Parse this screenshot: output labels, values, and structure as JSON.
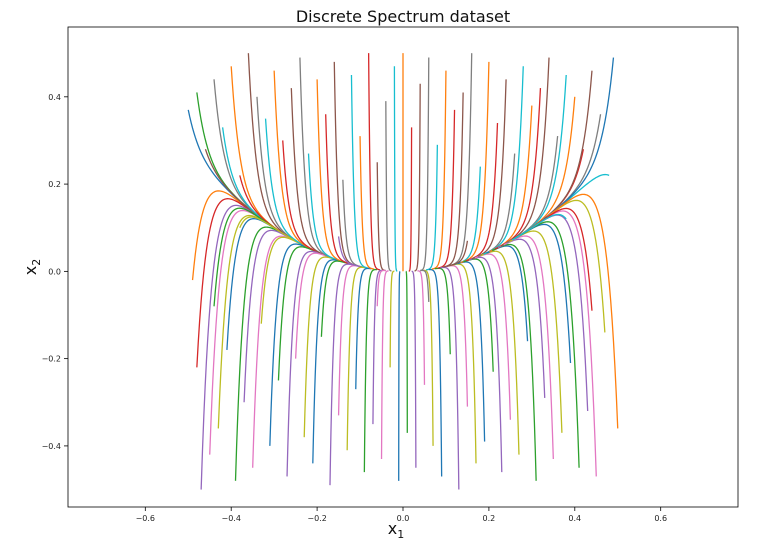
{
  "chart_data": {
    "type": "line",
    "title": "Discrete Spectrum dataset",
    "xlabel": {
      "base": "x",
      "sub": "1"
    },
    "ylabel": {
      "base": "x",
      "sub": "2"
    },
    "xlim": [
      -0.78,
      0.78
    ],
    "ylim": [
      -0.54,
      0.56
    ],
    "xticks": [
      -0.6,
      -0.4,
      -0.2,
      0.0,
      0.2,
      0.4,
      0.6
    ],
    "xtick_labels": [
      "−0.6",
      "−0.4",
      "−0.2",
      "0.0",
      "0.2",
      "0.4",
      "0.6"
    ],
    "yticks": [
      -0.4,
      -0.2,
      0.0,
      0.2,
      0.4
    ],
    "ytick_labels": [
      "−0.4",
      "−0.2",
      "0.0",
      "0.2",
      "0.4"
    ],
    "grid": false,
    "legend": "none",
    "trajectory_model": {
      "mu": -0.05,
      "lambda": -1.0,
      "t_end": 8,
      "steps": 60
    },
    "colors": [
      "#1f77b4",
      "#ff7f0e",
      "#2ca02c",
      "#d62728",
      "#9467bd",
      "#8c564b",
      "#e377c2",
      "#7f7f7f",
      "#bcbd22",
      "#17becf"
    ],
    "initial_conditions": [
      [
        -0.5,
        0.37
      ],
      [
        -0.49,
        -0.02
      ],
      [
        -0.48,
        0.41
      ],
      [
        -0.48,
        -0.22
      ],
      [
        -0.47,
        -0.5
      ],
      [
        -0.46,
        0.28
      ],
      [
        -0.45,
        -0.42
      ],
      [
        -0.44,
        0.44
      ],
      [
        -0.43,
        -0.36
      ],
      [
        -0.42,
        0.33
      ],
      [
        -0.41,
        -0.18
      ],
      [
        -0.4,
        0.47
      ],
      [
        -0.39,
        -0.48
      ],
      [
        -0.38,
        0.22
      ],
      [
        -0.37,
        -0.3
      ],
      [
        -0.36,
        0.5
      ],
      [
        -0.35,
        -0.45
      ],
      [
        -0.34,
        0.4
      ],
      [
        -0.33,
        -0.12
      ],
      [
        -0.32,
        0.35
      ],
      [
        -0.31,
        -0.4
      ],
      [
        -0.3,
        0.46
      ],
      [
        -0.29,
        -0.25
      ],
      [
        -0.28,
        0.3
      ],
      [
        -0.27,
        -0.47
      ],
      [
        -0.26,
        0.42
      ],
      [
        -0.25,
        -0.2
      ],
      [
        -0.24,
        0.49
      ],
      [
        -0.23,
        -0.38
      ],
      [
        -0.22,
        0.27
      ],
      [
        -0.21,
        -0.44
      ],
      [
        -0.2,
        0.44
      ],
      [
        -0.19,
        -0.15
      ],
      [
        -0.18,
        0.36
      ],
      [
        -0.17,
        -0.49
      ],
      [
        -0.16,
        0.48
      ],
      [
        -0.15,
        -0.33
      ],
      [
        -0.14,
        0.21
      ],
      [
        -0.13,
        -0.41
      ],
      [
        -0.12,
        0.45
      ],
      [
        -0.11,
        -0.27
      ],
      [
        -0.1,
        0.31
      ],
      [
        -0.09,
        -0.46
      ],
      [
        -0.08,
        0.5
      ],
      [
        -0.07,
        -0.35
      ],
      [
        -0.06,
        0.25
      ],
      [
        -0.05,
        -0.43
      ],
      [
        -0.04,
        0.39
      ],
      [
        -0.03,
        -0.22
      ],
      [
        -0.02,
        0.47
      ],
      [
        -0.01,
        -0.48
      ],
      [
        0.0,
        0.5
      ],
      [
        0.01,
        -0.37
      ],
      [
        0.02,
        0.33
      ],
      [
        0.03,
        -0.45
      ],
      [
        0.04,
        0.43
      ],
      [
        0.05,
        -0.26
      ],
      [
        0.06,
        0.49
      ],
      [
        0.07,
        -0.4
      ],
      [
        0.08,
        0.29
      ],
      [
        0.09,
        -0.47
      ],
      [
        0.1,
        0.46
      ],
      [
        0.11,
        -0.19
      ],
      [
        0.12,
        0.37
      ],
      [
        0.13,
        -0.5
      ],
      [
        0.14,
        0.41
      ],
      [
        0.15,
        -0.31
      ],
      [
        0.16,
        0.5
      ],
      [
        0.17,
        -0.44
      ],
      [
        0.18,
        0.24
      ],
      [
        0.19,
        -0.39
      ],
      [
        0.2,
        0.48
      ],
      [
        0.21,
        -0.23
      ],
      [
        0.22,
        0.34
      ],
      [
        0.23,
        -0.46
      ],
      [
        0.24,
        0.44
      ],
      [
        0.25,
        -0.34
      ],
      [
        0.26,
        0.27
      ],
      [
        0.27,
        -0.42
      ],
      [
        0.28,
        0.47
      ],
      [
        0.29,
        -0.16
      ],
      [
        0.3,
        0.38
      ],
      [
        0.31,
        -0.48
      ],
      [
        0.32,
        0.42
      ],
      [
        0.33,
        -0.29
      ],
      [
        0.34,
        0.49
      ],
      [
        0.35,
        -0.43
      ],
      [
        0.36,
        0.31
      ],
      [
        0.37,
        -0.37
      ],
      [
        0.38,
        0.45
      ],
      [
        0.39,
        -0.21
      ],
      [
        0.4,
        0.4
      ],
      [
        0.41,
        -0.45
      ],
      [
        0.42,
        0.28
      ],
      [
        0.43,
        -0.32
      ],
      [
        0.44,
        0.46
      ],
      [
        0.45,
        -0.47
      ],
      [
        0.46,
        0.36
      ],
      [
        0.47,
        -0.14
      ],
      [
        0.48,
        0.22
      ],
      [
        0.49,
        0.49
      ],
      [
        0.5,
        -0.36
      ],
      [
        -0.44,
        -0.08
      ],
      [
        0.44,
        -0.09
      ],
      [
        -0.15,
        0.08
      ],
      [
        0.15,
        0.07
      ],
      [
        -0.06,
        -0.08
      ],
      [
        0.06,
        -0.07
      ],
      [
        -0.38,
        0.1
      ],
      [
        0.38,
        0.12
      ]
    ]
  }
}
